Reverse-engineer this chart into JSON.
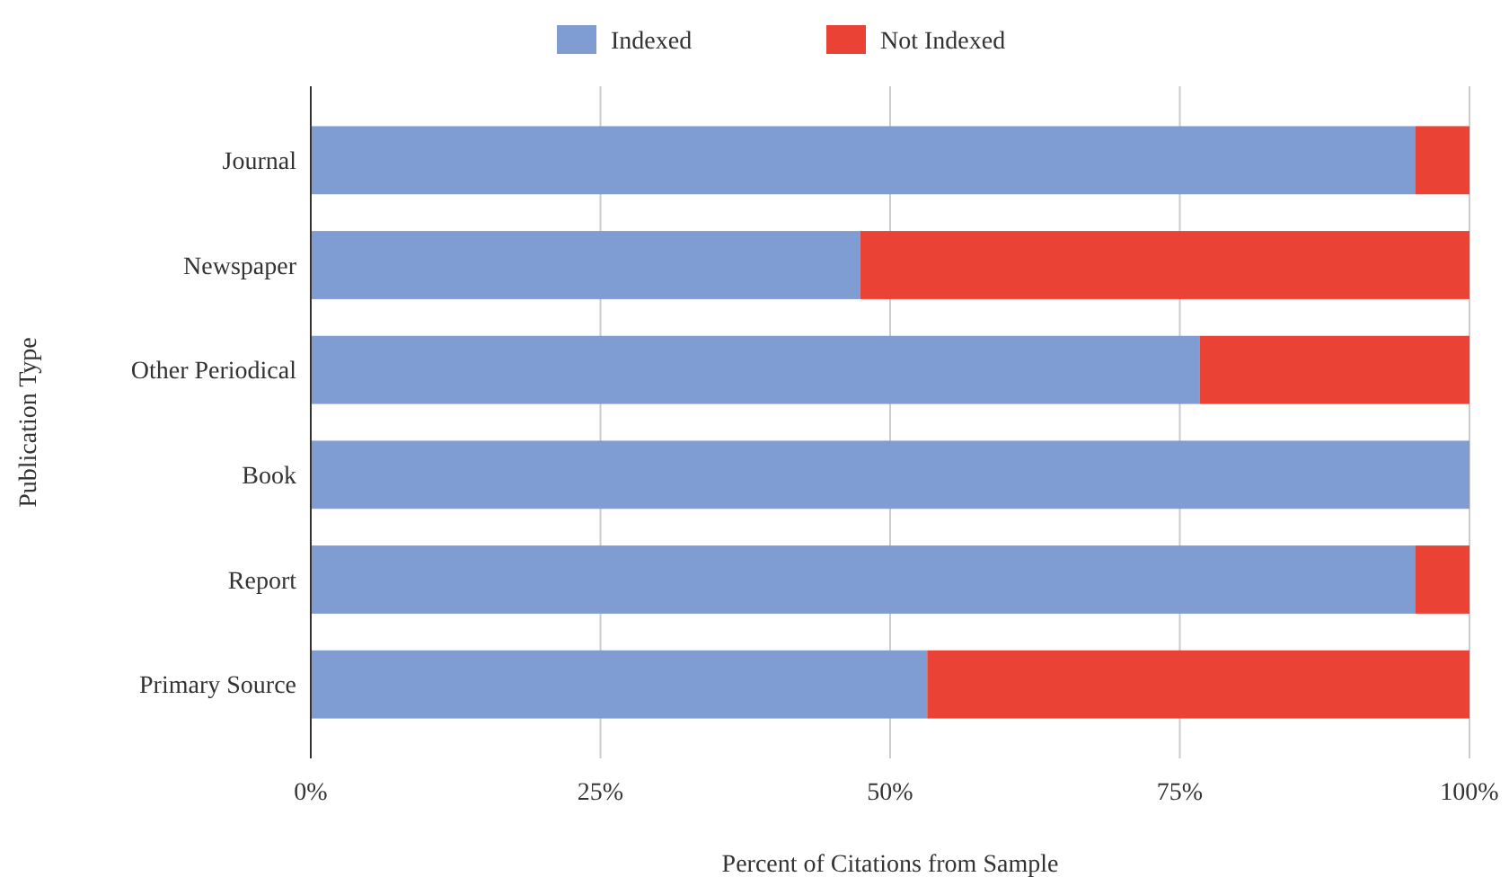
{
  "chart_data": {
    "type": "bar",
    "orientation": "horizontal",
    "stacked": true,
    "categories": [
      "Journal",
      "Newspaper",
      "Other Periodical",
      "Book",
      "Report",
      "Primary Source"
    ],
    "series": [
      {
        "name": "Indexed",
        "color": "#7f9cd3",
        "values": [
          95.3,
          47.4,
          76.7,
          100,
          95.3,
          53.2
        ]
      },
      {
        "name": "Not Indexed",
        "color": "#ea4335",
        "values": [
          4.7,
          52.6,
          23.3,
          0,
          4.7,
          46.8
        ]
      }
    ],
    "xlim": [
      0,
      100
    ],
    "xticks": [
      {
        "value": 0,
        "label": "0%"
      },
      {
        "value": 25,
        "label": "25%"
      },
      {
        "value": 50,
        "label": "50%"
      },
      {
        "value": 75,
        "label": "75%"
      },
      {
        "value": 100,
        "label": "100%"
      }
    ],
    "xlabel": "Percent of Citations from Sample",
    "ylabel": "Publication Type",
    "grid": "x",
    "legend": "top"
  }
}
